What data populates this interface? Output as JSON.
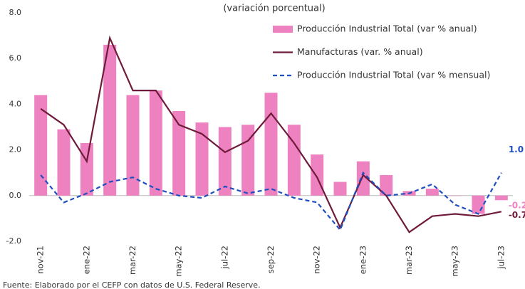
{
  "chart_data": {
    "type": "bar-line",
    "title": "(variación porcentual)",
    "source": "Fuente: Elaborado por el CEFP con datos de U.S. Federal Reserve.",
    "categories": [
      "nov-21",
      null,
      "ene-22",
      null,
      "mar-22",
      null,
      "may-22",
      null,
      "jul-22",
      null,
      "sep-22",
      null,
      "nov-22",
      null,
      "ene-23",
      null,
      "mar-23",
      null,
      "may-23",
      null,
      "jul-23"
    ],
    "series": [
      {
        "name": "Producción Industrial Total (var % anual)",
        "type": "bar",
        "color": "#ee82c0",
        "values": [
          4.4,
          2.9,
          2.3,
          6.6,
          4.4,
          4.6,
          3.7,
          3.2,
          3.0,
          3.1,
          4.5,
          3.1,
          1.8,
          0.6,
          1.5,
          0.9,
          0.2,
          0.3,
          0.0,
          -0.8,
          -0.2
        ],
        "value_labels": [
          null,
          null,
          null,
          null,
          null,
          null,
          null,
          null,
          null,
          null,
          null,
          null,
          null,
          null,
          null,
          null,
          null,
          null,
          null,
          null,
          "-0.2"
        ]
      },
      {
        "name": "Manufacturas (var. % anual)",
        "type": "line",
        "color": "#6e1a3a",
        "values": [
          3.8,
          3.1,
          1.5,
          6.9,
          4.6,
          4.6,
          3.1,
          2.7,
          1.9,
          2.4,
          3.6,
          2.3,
          0.8,
          -1.4,
          0.9,
          0.0,
          -1.6,
          -0.9,
          -0.8,
          -0.9,
          -0.7
        ],
        "value_labels": [
          null,
          null,
          null,
          null,
          null,
          null,
          null,
          null,
          null,
          null,
          null,
          null,
          null,
          null,
          null,
          null,
          null,
          null,
          null,
          null,
          "-0.7"
        ]
      },
      {
        "name": "Producción Industrial Total (var % mensual)",
        "type": "dashed-line",
        "color": "#1f4fbf",
        "values": [
          0.9,
          -0.3,
          0.1,
          0.6,
          0.8,
          0.3,
          0.0,
          -0.1,
          0.4,
          0.1,
          0.3,
          -0.1,
          -0.3,
          -1.5,
          1.0,
          0.0,
          0.1,
          0.5,
          -0.4,
          -0.8,
          1.0
        ],
        "value_labels": [
          null,
          null,
          null,
          null,
          null,
          null,
          null,
          null,
          null,
          null,
          null,
          null,
          null,
          null,
          null,
          null,
          null,
          null,
          null,
          null,
          "1.0"
        ]
      }
    ],
    "ylim": [
      -2,
      8
    ],
    "yticks": [
      {
        "value": -2,
        "label": "-2.0"
      },
      {
        "value": 0,
        "label": "0.0"
      },
      {
        "value": 2,
        "label": "2.0"
      },
      {
        "value": 4,
        "label": "4.0"
      },
      {
        "value": 6,
        "label": "6.0"
      },
      {
        "value": 8,
        "label": "8.0"
      }
    ],
    "grid": false
  }
}
